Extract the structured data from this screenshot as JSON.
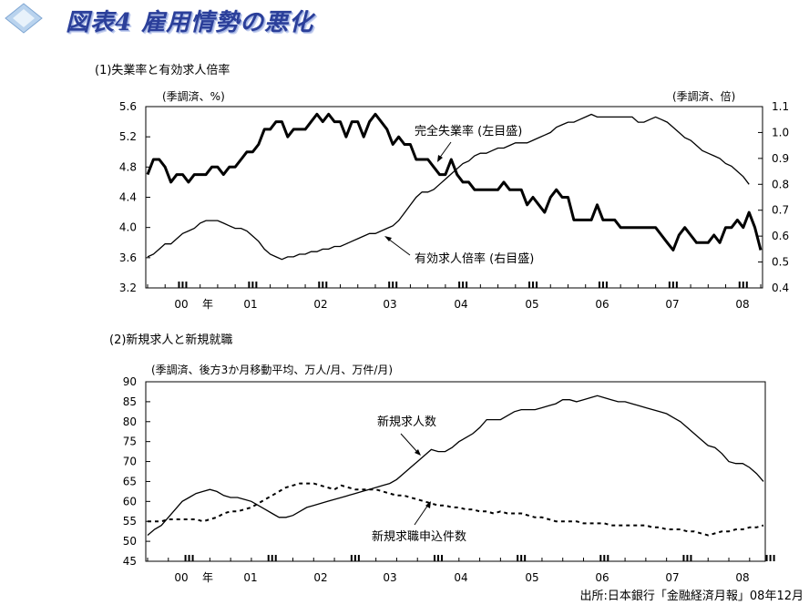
{
  "page": {
    "title": "図表4 雇用情勢の悪化",
    "source": "出所:日本銀行「金融経済月報」08年12月"
  },
  "colors": {
    "title": "#2b3f9a",
    "diamond": "#8fb3d9",
    "line": "#000000"
  },
  "chart_data": [
    {
      "type": "line",
      "section_title": "(1)失業率と有効求人倍率",
      "unit_left": "(季調済、%)",
      "unit_right": "(季調済、倍)",
      "x_tick_labels": [
        "00",
        "年",
        "01",
        "02",
        "03",
        "04",
        "05",
        "06",
        "07",
        "08"
      ],
      "x_range": [
        "2000-01",
        "2008-10"
      ],
      "y_left": {
        "min": 3.2,
        "max": 5.6,
        "ticks": [
          "3.2",
          "3.6",
          "4.0",
          "4.4",
          "4.8",
          "5.2",
          "5.6"
        ]
      },
      "y_right": {
        "min": 0.4,
        "max": 1.1,
        "ticks": [
          "0.4",
          "0.5",
          "0.6",
          "0.7",
          "0.8",
          "0.9",
          "1.0",
          "1.1"
        ]
      },
      "series": [
        {
          "name": "完全失業率",
          "label": "完全失業率 (左目盛)",
          "axis": "left",
          "values": [
            4.7,
            4.9,
            4.9,
            4.8,
            4.6,
            4.7,
            4.7,
            4.6,
            4.7,
            4.7,
            4.7,
            4.8,
            4.8,
            4.7,
            4.8,
            4.8,
            4.9,
            5.0,
            5.0,
            5.1,
            5.3,
            5.3,
            5.4,
            5.4,
            5.2,
            5.3,
            5.3,
            5.3,
            5.4,
            5.5,
            5.4,
            5.5,
            5.4,
            5.4,
            5.2,
            5.4,
            5.4,
            5.2,
            5.4,
            5.5,
            5.4,
            5.3,
            5.1,
            5.2,
            5.1,
            5.1,
            4.9,
            4.9,
            4.9,
            4.8,
            4.7,
            4.7,
            4.9,
            4.7,
            4.6,
            4.6,
            4.5,
            4.5,
            4.5,
            4.5,
            4.5,
            4.6,
            4.5,
            4.5,
            4.5,
            4.3,
            4.4,
            4.3,
            4.2,
            4.4,
            4.5,
            4.4,
            4.4,
            4.1,
            4.1,
            4.1,
            4.1,
            4.3,
            4.1,
            4.1,
            4.1,
            4.0,
            4.0,
            4.0,
            4.0,
            4.0,
            4.0,
            4.0,
            3.9,
            3.8,
            3.7,
            3.9,
            4.0,
            3.9,
            3.8,
            3.8,
            3.8,
            3.9,
            3.8,
            4.0,
            4.0,
            4.1,
            4.0,
            4.2,
            4.0,
            3.7
          ]
        },
        {
          "name": "有効求人倍率",
          "label": "有効求人倍率 (右目盛)",
          "axis": "right",
          "values": [
            0.52,
            0.53,
            0.55,
            0.57,
            0.57,
            0.59,
            0.61,
            0.62,
            0.63,
            0.65,
            0.66,
            0.66,
            0.66,
            0.65,
            0.64,
            0.63,
            0.63,
            0.62,
            0.6,
            0.58,
            0.55,
            0.53,
            0.52,
            0.51,
            0.52,
            0.52,
            0.53,
            0.53,
            0.54,
            0.54,
            0.55,
            0.55,
            0.56,
            0.56,
            0.57,
            0.58,
            0.59,
            0.6,
            0.61,
            0.61,
            0.62,
            0.63,
            0.64,
            0.66,
            0.69,
            0.72,
            0.75,
            0.77,
            0.77,
            0.78,
            0.8,
            0.82,
            0.84,
            0.86,
            0.88,
            0.89,
            0.91,
            0.92,
            0.92,
            0.93,
            0.94,
            0.94,
            0.95,
            0.96,
            0.96,
            0.96,
            0.97,
            0.98,
            0.99,
            1.0,
            1.02,
            1.03,
            1.04,
            1.04,
            1.05,
            1.06,
            1.07,
            1.06,
            1.06,
            1.06,
            1.06,
            1.06,
            1.06,
            1.06,
            1.04,
            1.04,
            1.05,
            1.06,
            1.05,
            1.04,
            1.02,
            1.0,
            0.98,
            0.97,
            0.95,
            0.93,
            0.92,
            0.91,
            0.9,
            0.88,
            0.87,
            0.85,
            0.83,
            0.8
          ]
        }
      ]
    },
    {
      "type": "line",
      "section_title": "(2)新規求人と新規就職",
      "unit_left": "(季調済、後方3か月移動平均、万人/月、万件/月)",
      "x_tick_labels": [
        "00",
        "年",
        "01",
        "02",
        "03",
        "04",
        "05",
        "06",
        "07",
        "08"
      ],
      "x_range": [
        "2000-01",
        "2008-10"
      ],
      "y_left": {
        "min": 45,
        "max": 90,
        "ticks": [
          "45",
          "50",
          "55",
          "60",
          "65",
          "70",
          "75",
          "80",
          "85",
          "90"
        ]
      },
      "series": [
        {
          "name": "新規求人数",
          "label": "新規求人数",
          "style": "solid",
          "values": [
            51.5,
            53,
            54,
            56,
            58,
            60,
            61,
            62,
            62.5,
            63,
            62.5,
            61.5,
            61,
            61,
            60.5,
            60,
            59,
            58,
            57,
            56,
            56,
            56.5,
            57.5,
            58.5,
            59,
            59.5,
            60,
            60.5,
            61,
            61.5,
            62,
            62.5,
            63,
            63.5,
            64,
            64.5,
            65.5,
            67,
            68.5,
            70,
            71.5,
            73,
            72.5,
            72.5,
            73.5,
            75,
            76,
            77,
            78.5,
            80.5,
            80.5,
            80.5,
            81.5,
            82.5,
            83,
            83,
            83,
            83.5,
            84,
            84.5,
            85.5,
            85.5,
            85,
            85.5,
            86,
            86.5,
            86,
            85.5,
            85,
            85,
            84.5,
            84,
            83.5,
            83,
            82.5,
            82,
            81,
            80,
            78.5,
            77,
            75.5,
            74,
            73.5,
            72,
            70,
            69.5,
            69.5,
            68.5,
            67,
            65
          ]
        },
        {
          "name": "新規求職申込件数",
          "label": "新規求職申込件数",
          "style": "dashed",
          "values": [
            55,
            55,
            55,
            55.5,
            55.5,
            55.5,
            55.5,
            55.5,
            55,
            55.5,
            56,
            57,
            57.5,
            57.5,
            58,
            58.5,
            59.5,
            60.5,
            61.5,
            62.5,
            63.5,
            64,
            64.5,
            64.5,
            64.5,
            64,
            63.5,
            63,
            64,
            63.5,
            63,
            63,
            63,
            63,
            62.5,
            62,
            61.5,
            61.5,
            61,
            60.5,
            60,
            59.5,
            59,
            59,
            58.5,
            58.5,
            58,
            58,
            57.5,
            57.5,
            57,
            57.5,
            57,
            57,
            57,
            56.5,
            56,
            56,
            55.5,
            55,
            55,
            55,
            55,
            54.5,
            54.5,
            54.5,
            54.5,
            54,
            54,
            54,
            54,
            54,
            54,
            53.5,
            53.5,
            53,
            53,
            53,
            52.5,
            52.5,
            52,
            51.5,
            52,
            52.5,
            52.5,
            53,
            53,
            53.5,
            53.5,
            54
          ]
        }
      ]
    }
  ]
}
